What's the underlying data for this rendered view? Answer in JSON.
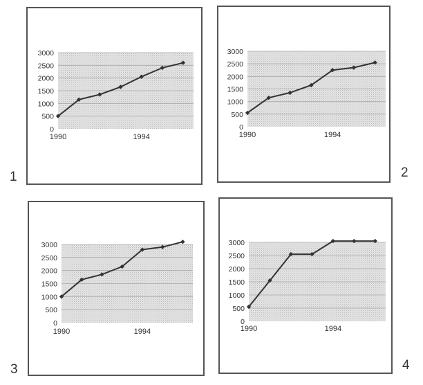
{
  "page": {
    "panel_numbers": [
      "1",
      "2",
      "3",
      "4"
    ]
  },
  "chart_data": [
    {
      "type": "line",
      "x": [
        1990,
        1991,
        1992,
        1993,
        1994,
        1995,
        1996
      ],
      "values": [
        500,
        1150,
        1350,
        1650,
        2050,
        2400,
        2600
      ],
      "ylim": [
        0,
        3000
      ],
      "y_ticks": [
        "0",
        "500",
        "1000",
        "1500",
        "2000",
        "2500",
        "3000"
      ],
      "x_tick_labels": [
        "1990",
        "1994"
      ],
      "grid": true,
      "plot_background": "#e3e3e3",
      "line_color": "#333333"
    },
    {
      "type": "line",
      "x": [
        1990,
        1991,
        1992,
        1993,
        1994,
        1995,
        1996
      ],
      "values": [
        550,
        1150,
        1350,
        1650,
        2250,
        2350,
        2550
      ],
      "ylim": [
        0,
        3000
      ],
      "y_ticks": [
        "0",
        "500",
        "1000",
        "1500",
        "2000",
        "2500",
        "3000"
      ],
      "x_tick_labels": [
        "1990",
        "1994"
      ],
      "grid": true,
      "plot_background": "#e3e3e3",
      "line_color": "#333333"
    },
    {
      "type": "line",
      "x": [
        1990,
        1991,
        1992,
        1993,
        1994,
        1995,
        1996
      ],
      "values": [
        1000,
        1650,
        1850,
        2150,
        2800,
        2900,
        3100
      ],
      "ylim": [
        0,
        3000
      ],
      "y_ticks": [
        "0",
        "500",
        "1000",
        "1500",
        "2000",
        "2500",
        "3000"
      ],
      "x_tick_labels": [
        "1990",
        "1994"
      ],
      "grid": true,
      "plot_background": "#e3e3e3",
      "line_color": "#333333"
    },
    {
      "type": "line",
      "x": [
        1990,
        1991,
        1992,
        1993,
        1994,
        1995,
        1996
      ],
      "values": [
        550,
        1550,
        2550,
        2550,
        3050,
        3050,
        3050
      ],
      "ylim": [
        0,
        3000
      ],
      "y_ticks": [
        "0",
        "500",
        "1000",
        "1500",
        "2000",
        "2500",
        "3000"
      ],
      "x_tick_labels": [
        "1990",
        "1994"
      ],
      "grid": true,
      "plot_background": "#e3e3e3",
      "line_color": "#333333"
    }
  ]
}
